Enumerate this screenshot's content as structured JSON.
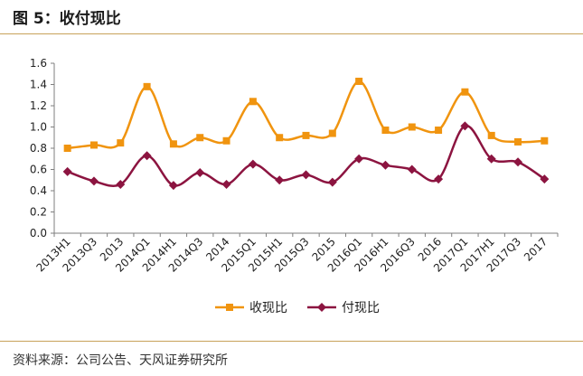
{
  "header": {
    "title": "图 5：收付现比"
  },
  "footer": {
    "source": "资料来源：公司公告、天风证券研究所"
  },
  "chart_data": {
    "type": "line",
    "title": "",
    "xlabel": "",
    "ylabel": "",
    "ylim": [
      0,
      1.6
    ],
    "yticks": [
      "0.0",
      "0.2",
      "0.4",
      "0.6",
      "0.8",
      "1.0",
      "1.2",
      "1.4",
      "1.6"
    ],
    "categories": [
      "2013H1",
      "2013Q3",
      "2013",
      "2014Q1",
      "2014H1",
      "2014Q3",
      "2014",
      "2015Q1",
      "2015H1",
      "2015Q3",
      "2015",
      "2016Q1",
      "2016H1",
      "2016Q3",
      "2016",
      "2017Q1",
      "2017H1",
      "2017Q3",
      "2017"
    ],
    "grid": false,
    "legend_position": "bottom-center",
    "series": [
      {
        "name": "收现比",
        "color": "#f0940f",
        "marker": "square",
        "values": [
          0.8,
          0.83,
          0.85,
          1.38,
          0.84,
          0.9,
          0.87,
          1.24,
          0.9,
          0.92,
          0.94,
          1.43,
          0.97,
          1.0,
          0.97,
          1.33,
          0.92,
          0.86,
          0.87
        ]
      },
      {
        "name": "付现比",
        "color": "#8c1440",
        "marker": "diamond",
        "values": [
          0.58,
          0.49,
          0.46,
          0.73,
          0.45,
          0.57,
          0.46,
          0.65,
          0.5,
          0.55,
          0.48,
          0.7,
          0.64,
          0.6,
          0.51,
          1.01,
          0.7,
          0.67,
          0.51
        ]
      }
    ]
  }
}
